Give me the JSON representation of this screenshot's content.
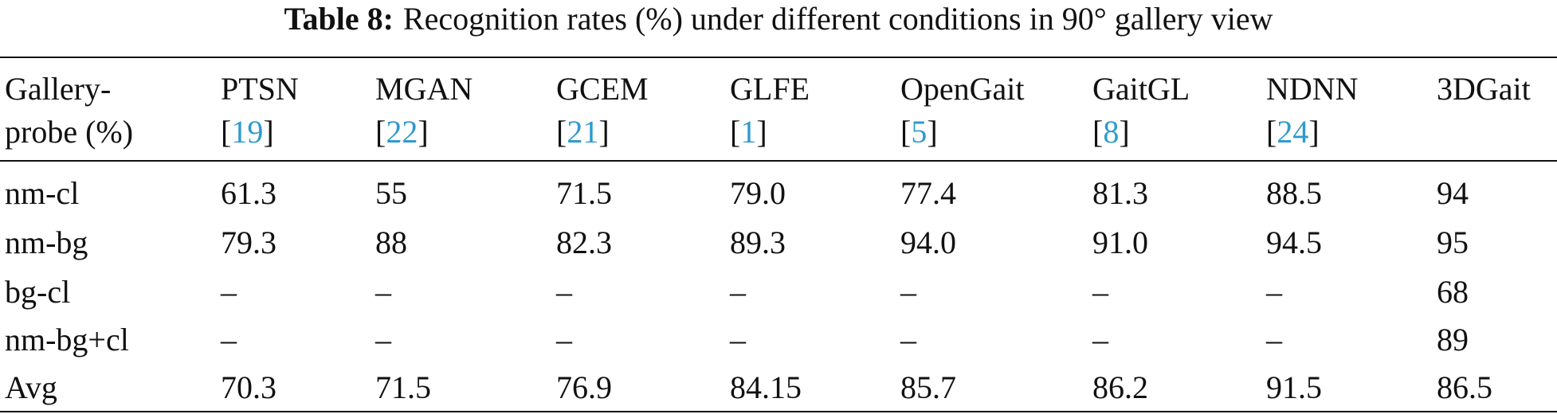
{
  "caption": {
    "label": "Table 8:",
    "text": "Recognition rates (%) under different conditions in 90° gallery view"
  },
  "table": {
    "header": [
      {
        "lines": [
          "Gallery-",
          "probe (%)"
        ]
      },
      {
        "name": "PTSN",
        "cite": {
          "open": "[",
          "ref": "19",
          "close": "]"
        }
      },
      {
        "name": "MGAN",
        "cite": {
          "open": "[",
          "ref": "22",
          "close": "]"
        }
      },
      {
        "name": "GCEM",
        "cite": {
          "open": "[",
          "ref": "21",
          "close": "]"
        }
      },
      {
        "name": "GLFE",
        "cite": {
          "open": "[",
          "ref": "1",
          "close": "]"
        }
      },
      {
        "name": "OpenGait",
        "cite": {
          "open": "[",
          "ref": "5",
          "close": "]"
        }
      },
      {
        "name": "GaitGL",
        "cite": {
          "open": "[",
          "ref": "8",
          "close": "]"
        }
      },
      {
        "name": "NDNN",
        "cite": {
          "open": "[",
          "ref": "24",
          "close": "]"
        }
      },
      {
        "name": "3DGait"
      }
    ],
    "rows": [
      [
        "nm-cl",
        "61.3",
        "55",
        "71.5",
        "79.0",
        "77.4",
        "81.3",
        "88.5",
        "94"
      ],
      [
        "nm-bg",
        "79.3",
        "88",
        "82.3",
        "89.3",
        "94.0",
        "91.0",
        "94.5",
        "95"
      ],
      [
        "bg-cl",
        "–",
        "–",
        "–",
        "–",
        "–",
        "–",
        "–",
        "68"
      ],
      [
        "nm-bg+cl",
        "–",
        "–",
        "–",
        "–",
        "–",
        "–",
        "–",
        "89"
      ],
      [
        "Avg",
        "70.3",
        "71.5",
        "76.9",
        "84.15",
        "85.7",
        "86.2",
        "91.5",
        "86.5"
      ]
    ]
  }
}
